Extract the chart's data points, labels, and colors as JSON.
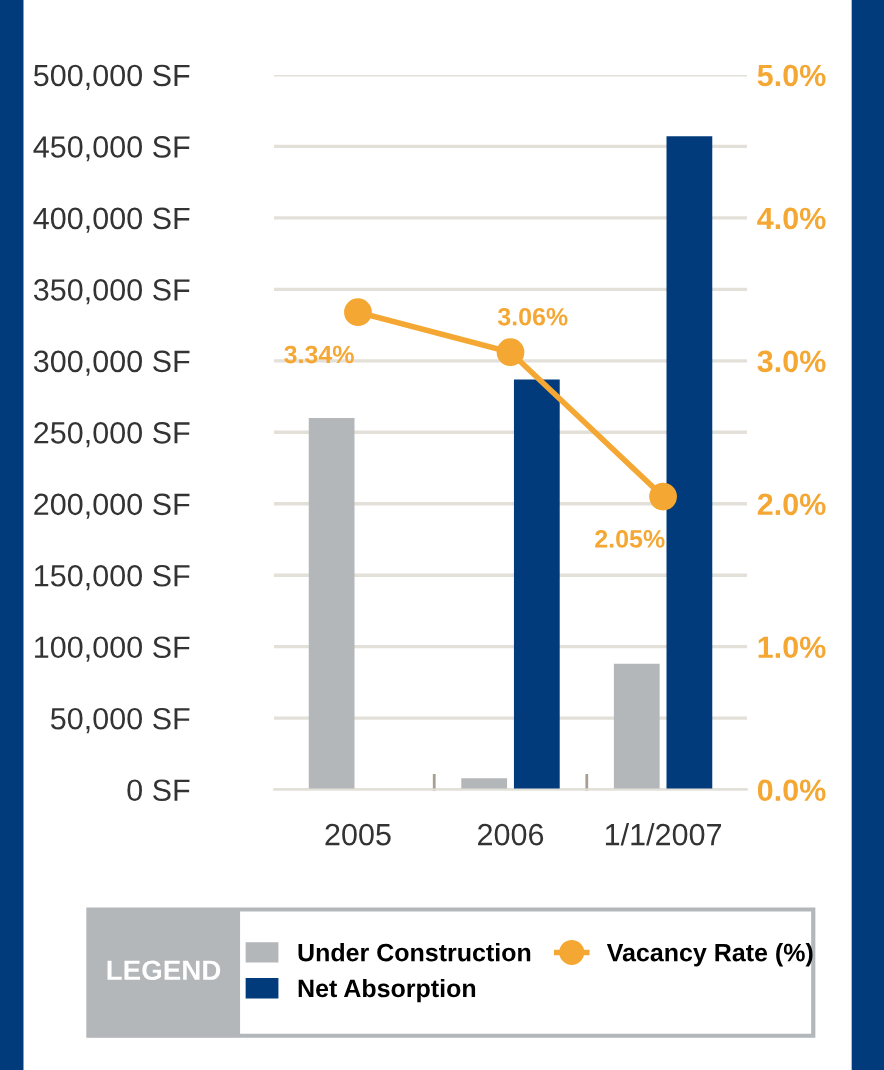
{
  "chart_data": {
    "type": "bar",
    "categories": [
      "2005",
      "2006",
      "1/1/2007"
    ],
    "series": [
      {
        "name": "Under Construction",
        "color": "#b3b7ba",
        "values": [
          260000,
          8000,
          88000
        ]
      },
      {
        "name": "Net Absorption",
        "color": "#023b7b",
        "values": [
          0,
          287000,
          457000
        ]
      },
      {
        "name": "Vacancy Rate (%)",
        "type": "line",
        "axis": "y2",
        "color": "#f5a733",
        "values": [
          3.34,
          3.06,
          2.05
        ],
        "value_labels": [
          "3.34%",
          "3.06%",
          "2.05%"
        ]
      }
    ],
    "ylim": [
      0,
      500000
    ],
    "yticks": [
      {
        "value": 0,
        "label": "0 SF"
      },
      {
        "value": 50000,
        "label": "50,000 SF"
      },
      {
        "value": 100000,
        "label": "100,000 SF"
      },
      {
        "value": 150000,
        "label": "150,000 SF"
      },
      {
        "value": 200000,
        "label": "200,000 SF"
      },
      {
        "value": 250000,
        "label": "250,000 SF"
      },
      {
        "value": 300000,
        "label": "300,000 SF"
      },
      {
        "value": 350000,
        "label": "350,000 SF"
      },
      {
        "value": 400000,
        "label": "400,000 SF"
      },
      {
        "value": 450000,
        "label": "450,000 SF"
      },
      {
        "value": 500000,
        "label": "500,000 SF"
      }
    ],
    "y2lim": [
      0,
      5
    ],
    "y2ticks": [
      {
        "value": 0,
        "label": "0.0%"
      },
      {
        "value": 1,
        "label": "1.0%"
      },
      {
        "value": 2,
        "label": "2.0%"
      },
      {
        "value": 3,
        "label": "3.0%"
      },
      {
        "value": 4,
        "label": "4.0%"
      },
      {
        "value": 5,
        "label": "5.0%"
      }
    ],
    "grid": "y",
    "marker": "circle",
    "legend": "bottom",
    "legend_title": "LEGEND"
  }
}
